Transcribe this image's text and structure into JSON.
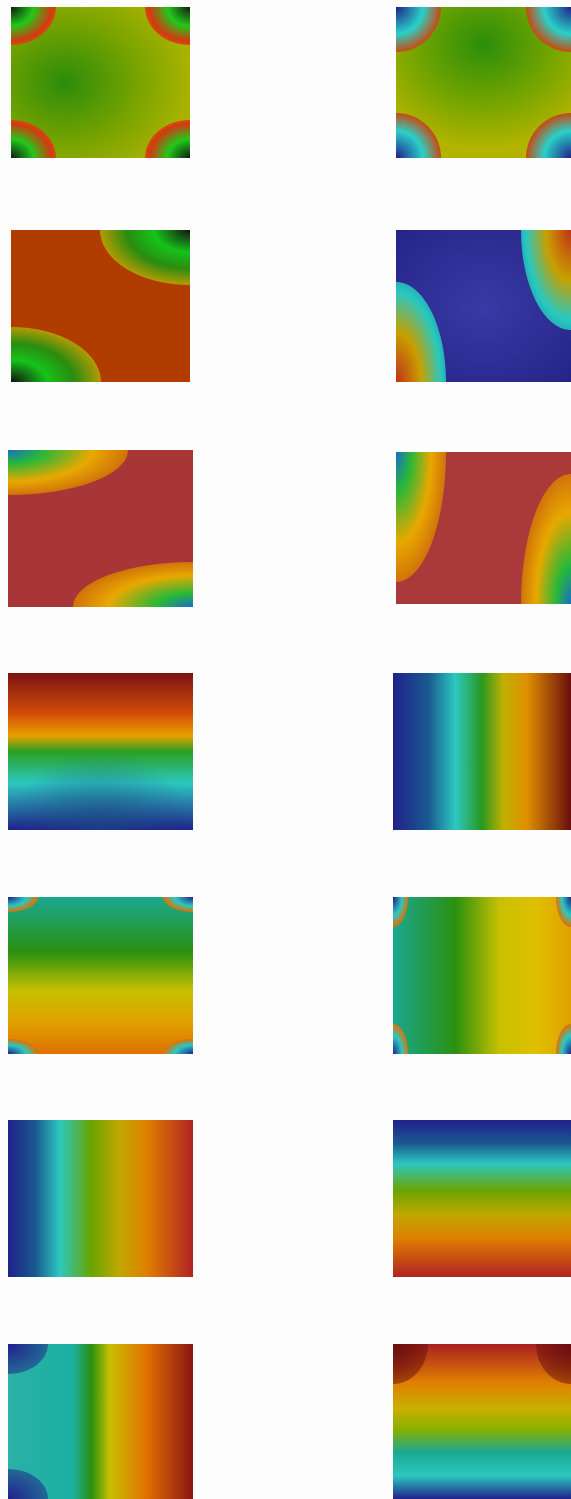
{
  "panels": [
    {
      "id": "r1-left",
      "colors": {
        "base": "#a9b200",
        "center": "#2c8c0a",
        "corner": "#d23a10",
        "ring": "#22c81a",
        "dark": "#101a10"
      }
    },
    {
      "id": "r1-right",
      "colors": {
        "base": "#a4b600",
        "center": "#2a8e0a",
        "corner": "#c84a12",
        "ring": "#2ad0c8",
        "dark": "#20208a"
      }
    },
    {
      "id": "r2-left",
      "colors": {
        "base": "#b43e00",
        "center": "#a63a00",
        "corner": "#e0a000",
        "ring": "#16c21a",
        "dark": "#121212"
      }
    },
    {
      "id": "r2-right",
      "colors": {
        "base": "#2e2e98",
        "center": "#3a3aa6",
        "corner": "#28c8c0",
        "ring": "#c8a000",
        "dark": "#c2301a"
      }
    },
    {
      "id": "r3-left",
      "colors": {
        "base": "#a63434",
        "center": "#b03c3c",
        "corner": "#e8a800",
        "ring": "#28b838",
        "dark": "#1a6cc8"
      }
    },
    {
      "id": "r3-right",
      "colors": {
        "base": "#a83838",
        "center": "#b43e3e",
        "corner": "#e8a800",
        "ring": "#28b838",
        "dark": "#1a6cc8"
      }
    },
    {
      "id": "r4-left",
      "colors": {
        "top": "#7a1212",
        "mid": "#e8a000",
        "center": "#2aa020",
        "low": "#2cc8c0",
        "bottom": "#20208a"
      }
    },
    {
      "id": "r4-right",
      "colors": {
        "left": "#20208a",
        "c1": "#2cc8c0",
        "c2": "#2a9820",
        "c3": "#e09000",
        "right": "#6a0e0e"
      }
    },
    {
      "id": "r5-left",
      "colors": {
        "top": "#1aa890",
        "center": "#2a9010",
        "low": "#e0a000",
        "bottom": "#e07000",
        "ring": "#2cc8c0"
      }
    },
    {
      "id": "r5-right",
      "colors": {
        "left": "#1aa890",
        "center": "#2a9010",
        "right": "#e0c000",
        "edge": "#e0a000",
        "ring": "#2cc8c0"
      }
    },
    {
      "id": "r6-left",
      "colors": {
        "left": "#20208a",
        "c1": "#2cc8c0",
        "mid": "#6aa400",
        "c3": "#e08000",
        "right": "#b02222"
      }
    },
    {
      "id": "r6-right",
      "colors": {
        "top": "#20208a",
        "c1": "#2cc8c0",
        "mid": "#6aa400",
        "c3": "#e08000",
        "bottom": "#b02222"
      }
    },
    {
      "id": "r7-left",
      "colors": {
        "left": "#2cb0a8",
        "c1": "#1ab0a0",
        "mid": "#c8c000",
        "c3": "#e07000",
        "right": "#8a1414"
      }
    },
    {
      "id": "r7-right",
      "colors": {
        "top": "#a82020",
        "c1": "#e08000",
        "mid": "#8ab000",
        "c3": "#2cc8c0",
        "bottom": "#20208a"
      }
    }
  ]
}
